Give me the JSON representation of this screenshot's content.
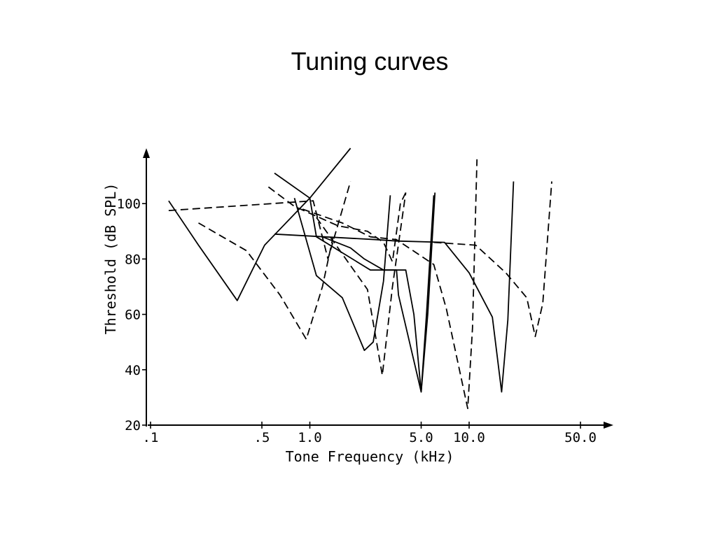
{
  "slide": {
    "title": "Tuning curves"
  },
  "chart_data": {
    "type": "line",
    "title": "Tuning curves",
    "xlabel": "Tone Frequency (kHz)",
    "ylabel": "Threshold (dB SPL)",
    "x_scale": "log",
    "xlim": [
      0.1,
      70
    ],
    "ylim": [
      20,
      120
    ],
    "x_ticks": [
      {
        "value": 0.1,
        "label": ".1"
      },
      {
        "value": 0.5,
        "label": ".5"
      },
      {
        "value": 1.0,
        "label": "1.0"
      },
      {
        "value": 5.0,
        "label": "5.0"
      },
      {
        "value": 10.0,
        "label": "10.0"
      },
      {
        "value": 50.0,
        "label": "50.0"
      }
    ],
    "y_ticks": [
      {
        "value": 20,
        "label": "20"
      },
      {
        "value": 40,
        "label": "40"
      },
      {
        "value": 60,
        "label": "60"
      },
      {
        "value": 80,
        "label": "80"
      },
      {
        "value": 100,
        "label": "100"
      }
    ],
    "grid": false,
    "legend": "none",
    "series": [
      {
        "style": "solid",
        "points": [
          [
            0.13,
            101
          ],
          [
            0.2,
            85
          ],
          [
            0.35,
            65
          ],
          [
            0.52,
            85
          ],
          [
            1.0,
            102
          ],
          [
            1.8,
            120
          ]
        ]
      },
      {
        "style": "dashed",
        "points": [
          [
            0.13,
            97.5
          ],
          [
            1.05,
            101
          ],
          [
            1.3,
            80
          ],
          [
            1.8,
            108
          ]
        ]
      },
      {
        "style": "dashed",
        "points": [
          [
            0.2,
            93
          ],
          [
            0.4,
            83
          ],
          [
            0.65,
            67
          ],
          [
            0.95,
            51
          ],
          [
            1.2,
            70
          ],
          [
            1.4,
            88
          ]
        ]
      },
      {
        "style": "solid",
        "points": [
          [
            0.6,
            111
          ],
          [
            1.0,
            102
          ],
          [
            1.1,
            88
          ],
          [
            2.4,
            76
          ],
          [
            3.1,
            76
          ],
          [
            3.5,
            76
          ],
          [
            3.6,
            67
          ],
          [
            5.0,
            32
          ],
          [
            5.4,
            60
          ],
          [
            6.0,
            103
          ]
        ]
      },
      {
        "style": "solid",
        "points": [
          [
            0.6,
            89
          ],
          [
            2.6,
            87
          ],
          [
            3.5,
            86.5
          ],
          [
            7.0,
            86
          ],
          [
            10.0,
            75
          ],
          [
            14.0,
            59
          ],
          [
            16.0,
            32
          ],
          [
            17.5,
            58
          ],
          [
            19.0,
            108
          ]
        ]
      },
      {
        "style": "dashed",
        "points": [
          [
            0.55,
            106
          ],
          [
            0.8,
            99
          ],
          [
            1.5,
            92
          ],
          [
            2.3,
            90
          ],
          [
            2.9,
            86
          ],
          [
            3.3,
            79
          ],
          [
            3.7,
            100
          ],
          [
            4.0,
            104
          ]
        ]
      },
      {
        "style": "solid",
        "points": [
          [
            1.2,
            88
          ],
          [
            1.8,
            84
          ],
          [
            2.2,
            80
          ],
          [
            2.9,
            76
          ],
          [
            3.3,
            76
          ],
          [
            4.0,
            76
          ],
          [
            4.5,
            60
          ],
          [
            5.0,
            32
          ],
          [
            5.5,
            60
          ],
          [
            6.1,
            104
          ]
        ]
      },
      {
        "style": "solid",
        "points": [
          [
            0.8,
            102
          ],
          [
            1.1,
            74
          ],
          [
            1.6,
            66
          ],
          [
            2.2,
            47
          ],
          [
            2.5,
            50
          ],
          [
            2.9,
            72
          ],
          [
            3.2,
            103
          ]
        ]
      },
      {
        "style": "dashed",
        "points": [
          [
            0.9,
            98
          ],
          [
            1.6,
            93
          ],
          [
            2.4,
            88
          ],
          [
            3.5,
            87
          ],
          [
            6.0,
            78
          ],
          [
            7.2,
            62
          ],
          [
            9.8,
            26
          ],
          [
            10.5,
            55
          ],
          [
            11.2,
            116
          ]
        ]
      },
      {
        "style": "dashed",
        "points": [
          [
            1.1,
            95
          ],
          [
            2.3,
            69
          ],
          [
            2.85,
            38
          ],
          [
            3.3,
            70
          ],
          [
            4.0,
            104
          ]
        ]
      },
      {
        "style": "dashed",
        "points": [
          [
            6.0,
            86
          ],
          [
            11.0,
            85
          ],
          [
            17.0,
            75
          ],
          [
            23.0,
            66
          ],
          [
            26.0,
            52
          ],
          [
            29.0,
            64
          ],
          [
            33.0,
            108
          ]
        ]
      }
    ]
  }
}
